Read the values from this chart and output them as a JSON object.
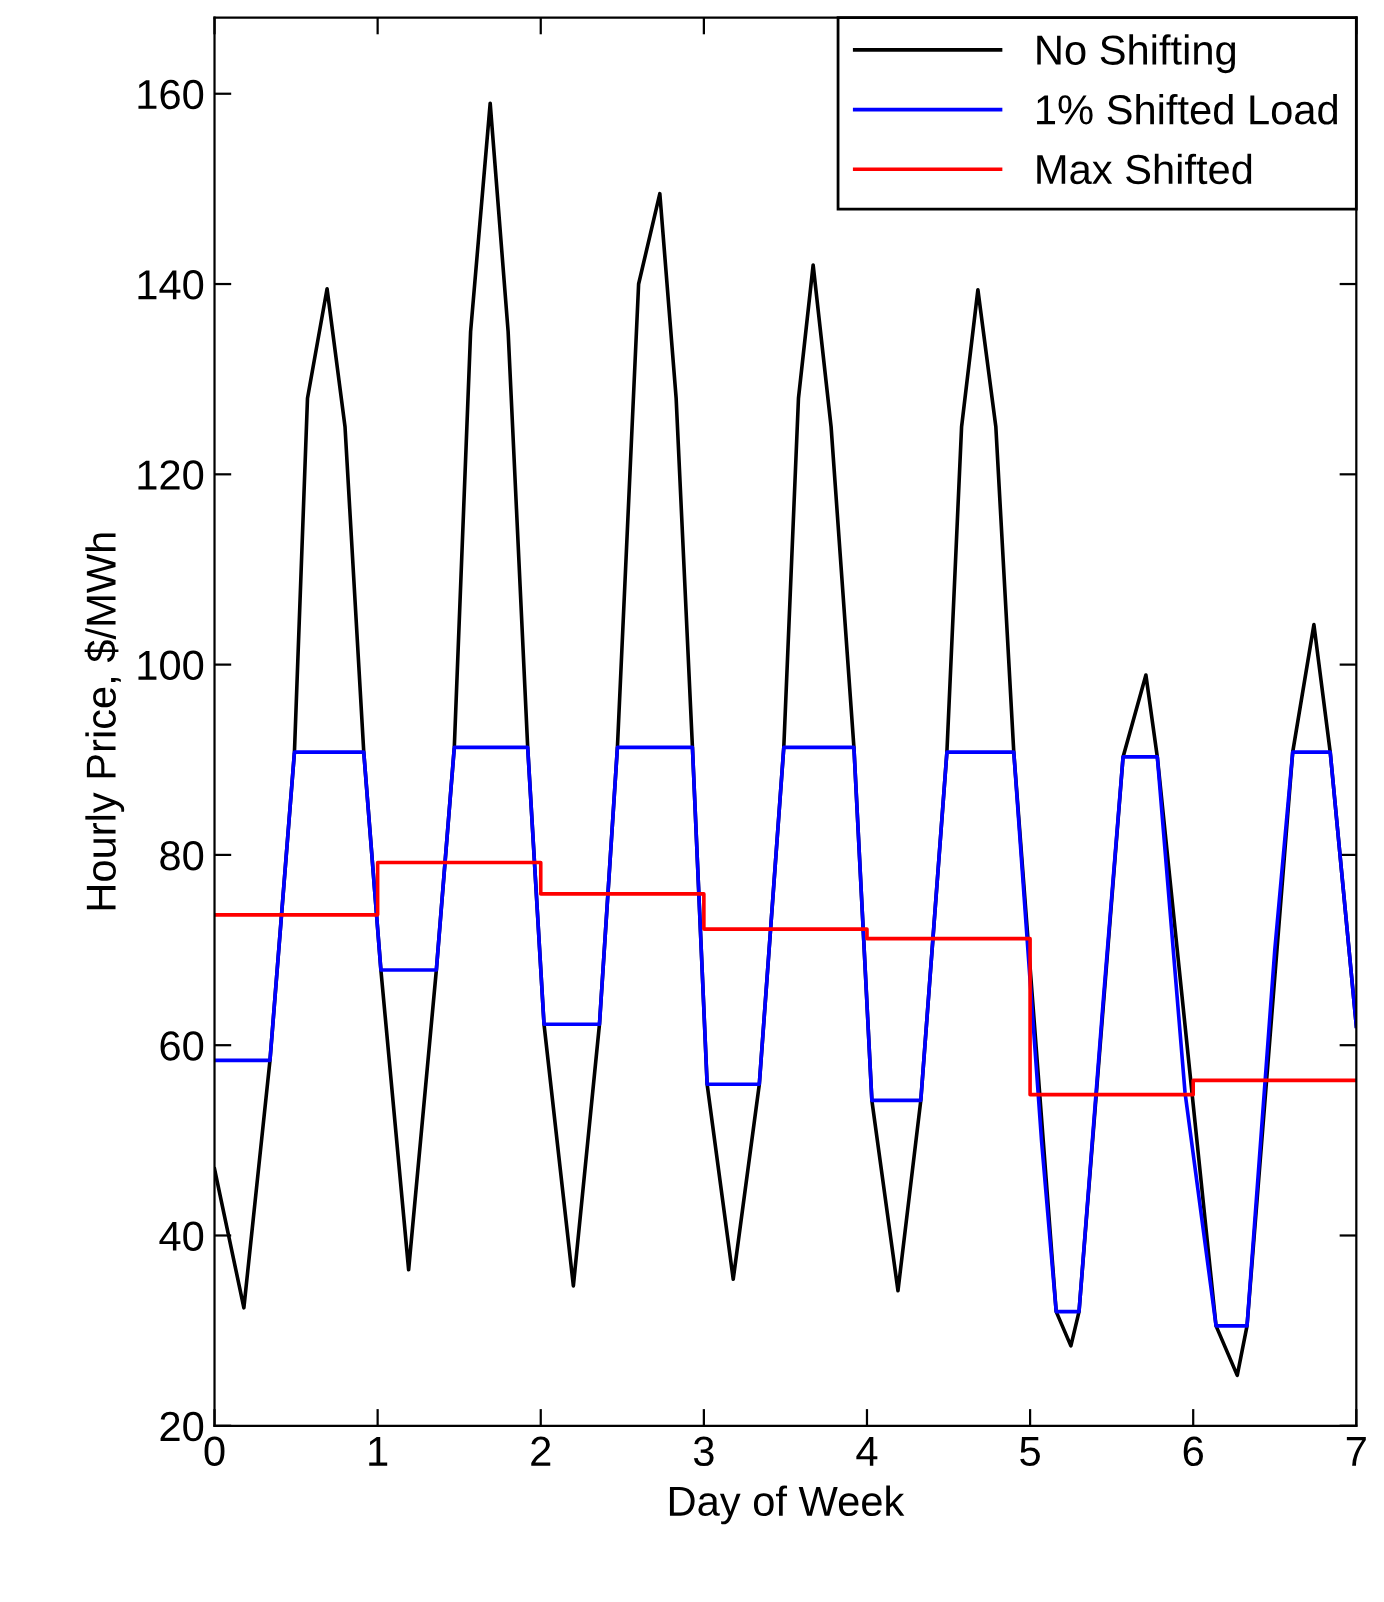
{
  "chart_data": {
    "type": "line",
    "xlabel": "Day of Week",
    "ylabel": "Hourly Price, $/MWh",
    "xlim": [
      0,
      7
    ],
    "ylim": [
      20,
      168
    ],
    "xticks": [
      0,
      1,
      2,
      3,
      4,
      5,
      6,
      7
    ],
    "yticks": [
      20,
      40,
      60,
      80,
      100,
      120,
      140,
      160
    ],
    "legend": "top right",
    "grid": false,
    "line_style": "solid",
    "marker": "none",
    "series": [
      {
        "name": "No Shifting",
        "color": "#000000",
        "x": [
          0,
          0.18,
          0.34,
          0.49,
          0.57,
          0.69,
          0.8,
          0.915,
          1.02,
          1.19,
          1.36,
          1.47,
          1.57,
          1.69,
          1.8,
          1.92,
          2.02,
          2.2,
          2.36,
          2.47,
          2.6,
          2.73,
          2.83,
          2.93,
          3.02,
          3.18,
          3.34,
          3.49,
          3.58,
          3.67,
          3.78,
          3.92,
          4.03,
          4.19,
          4.33,
          4.49,
          4.58,
          4.68,
          4.79,
          4.9,
          5.16,
          5.25,
          5.3,
          5.57,
          5.71,
          5.78,
          6.14,
          6.27,
          6.33,
          6.61,
          6.74,
          6.84,
          7
        ],
        "values": [
          47,
          32.4,
          58.4,
          90.8,
          128,
          139.5,
          125,
          90.8,
          67.9,
          36.4,
          67.9,
          91.3,
          135,
          159,
          135,
          91.3,
          62.2,
          34.7,
          62.2,
          91.3,
          140,
          149.5,
          128,
          91.3,
          55.9,
          35.4,
          55.9,
          91.3,
          128,
          142,
          125,
          91.3,
          54.2,
          34.2,
          54.2,
          90.8,
          125,
          139.4,
          125,
          90.8,
          32,
          28.4,
          32,
          90.3,
          98.9,
          90.3,
          30.5,
          25.3,
          30.5,
          90.8,
          104.2,
          90.8,
          62
        ]
      },
      {
        "name": "1% Shifted Load",
        "color": "#0000ff",
        "x": [
          0,
          0.34,
          0.49,
          0.915,
          1.02,
          1.36,
          1.47,
          1.92,
          2.02,
          2.36,
          2.47,
          2.93,
          3.02,
          3.34,
          3.49,
          3.92,
          4.03,
          4.33,
          4.49,
          4.9,
          5.07,
          5.16,
          5.3,
          5.45,
          5.57,
          5.78,
          5.95,
          6.14,
          6.33,
          6.5,
          6.61,
          6.84,
          7
        ],
        "values": [
          58.4,
          58.4,
          90.8,
          90.8,
          67.9,
          67.9,
          91.3,
          91.3,
          62.2,
          62.2,
          91.3,
          91.3,
          55.9,
          55.9,
          91.3,
          91.3,
          54.2,
          54.2,
          90.8,
          90.8,
          50,
          32,
          32,
          65,
          90.3,
          90.3,
          55,
          30.5,
          30.5,
          70,
          90.8,
          90.8,
          62
        ]
      },
      {
        "name": "Max Shifted",
        "color": "#ff0000",
        "x": [
          0,
          1,
          1,
          2,
          2,
          3,
          3,
          4,
          4,
          5,
          5,
          6,
          6,
          7
        ],
        "values": [
          73.7,
          73.7,
          79.2,
          79.2,
          75.9,
          75.9,
          72.2,
          72.2,
          71.2,
          71.2,
          54.8,
          54.8,
          56.3,
          56.3
        ]
      }
    ]
  }
}
